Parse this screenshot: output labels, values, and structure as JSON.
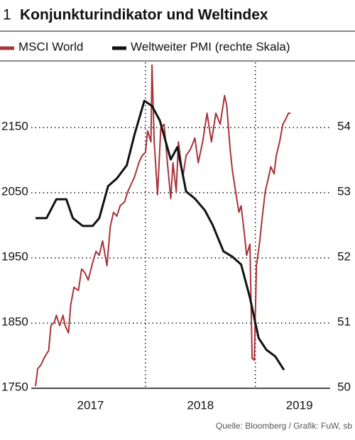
{
  "chart_data": {
    "type": "line",
    "number": "1",
    "title": "Konjunkturindikator und Weltindex",
    "source": "Quelle: Bloomberg / Grafik: FuW, sb",
    "xlim": [
      2017,
      2019.68
    ],
    "xticks": [
      {
        "value": 2017.5,
        "label": "2017"
      },
      {
        "value": 2018.5,
        "label": "2018"
      },
      {
        "value": 2019.4,
        "label": "2019"
      }
    ],
    "xgrid": [
      2018,
      2019
    ],
    "ylim": [
      1750,
      2250
    ],
    "yticks": [
      1750,
      1850,
      1950,
      2050,
      2150
    ],
    "y2lim": [
      50,
      55
    ],
    "y2ticks": [
      50,
      51,
      52,
      53,
      54
    ],
    "grid": true,
    "series": [
      {
        "name": "MSCI World",
        "color": "#a8343a",
        "x": [
          2017.0,
          2017.02,
          2017.05,
          2017.08,
          2017.12,
          2017.14,
          2017.17,
          2017.19,
          2017.22,
          2017.25,
          2017.27,
          2017.3,
          2017.32,
          2017.35,
          2017.39,
          2017.42,
          2017.45,
          2017.48,
          2017.52,
          2017.55,
          2017.58,
          2017.61,
          2017.65,
          2017.68,
          2017.71,
          2017.74,
          2017.77,
          2017.81,
          2017.84,
          2017.87,
          2017.9,
          2017.94,
          2017.97,
          2018.0,
          2018.02,
          2018.05,
          2018.06,
          2018.08,
          2018.11,
          2018.14,
          2018.17,
          2018.2,
          2018.23,
          2018.25,
          2018.28,
          2018.3,
          2018.34,
          2018.37,
          2018.41,
          2018.45,
          2018.48,
          2018.52,
          2018.56,
          2018.6,
          2018.64,
          2018.68,
          2018.72,
          2018.74,
          2018.77,
          2018.79,
          2018.82,
          2018.85,
          2018.87,
          2018.9,
          2018.92,
          2018.95,
          2018.97,
          2018.99,
          2019.01,
          2019.04,
          2019.06,
          2019.09,
          2019.12,
          2019.14,
          2019.17,
          2019.19,
          2019.22,
          2019.25,
          2019.27,
          2019.3,
          2019.32
        ],
        "values": [
          1753,
          1780,
          1786,
          1797,
          1808,
          1846,
          1851,
          1862,
          1846,
          1862,
          1846,
          1835,
          1878,
          1905,
          1900,
          1933,
          1927,
          1916,
          1943,
          1960,
          1954,
          1976,
          1938,
          1998,
          2020,
          2014,
          2030,
          2036,
          2052,
          2063,
          2074,
          2096,
          2107,
          2112,
          2145,
          2128,
          2246,
          2128,
          2047,
          2150,
          2155,
          2096,
          2041,
          2096,
          2052,
          2128,
          2074,
          2107,
          2117,
          2134,
          2096,
          2128,
          2172,
          2128,
          2172,
          2155,
          2199,
          2183,
          2117,
          2085,
          2052,
          2020,
          2030,
          1987,
          1954,
          1971,
          1796,
          1793,
          1938,
          1976,
          2009,
          2052,
          2074,
          2090,
          2079,
          2107,
          2128,
          2155,
          2161,
          2172,
          2172
        ]
      },
      {
        "name": "Weltweiter PMI (rechte Skala)",
        "color": "#111111",
        "axis": "y2",
        "x": [
          2017.0,
          2017.1,
          2017.19,
          2017.28,
          2017.34,
          2017.43,
          2017.52,
          2017.58,
          2017.66,
          2017.74,
          2017.83,
          2017.9,
          2017.99,
          2018.06,
          2018.13,
          2018.23,
          2018.29,
          2018.37,
          2018.45,
          2018.54,
          2018.61,
          2018.71,
          2018.79,
          2018.87,
          2018.95,
          2019.03,
          2019.1,
          2019.18,
          2019.26
        ],
        "values": [
          52.61,
          52.61,
          52.9,
          52.9,
          52.61,
          52.49,
          52.49,
          52.61,
          53.1,
          53.22,
          53.42,
          53.89,
          54.41,
          54.33,
          54.11,
          53.51,
          53.7,
          53.02,
          52.91,
          52.73,
          52.51,
          52.1,
          52.02,
          51.9,
          51.39,
          50.77,
          50.59,
          50.49,
          50.28
        ]
      }
    ]
  }
}
